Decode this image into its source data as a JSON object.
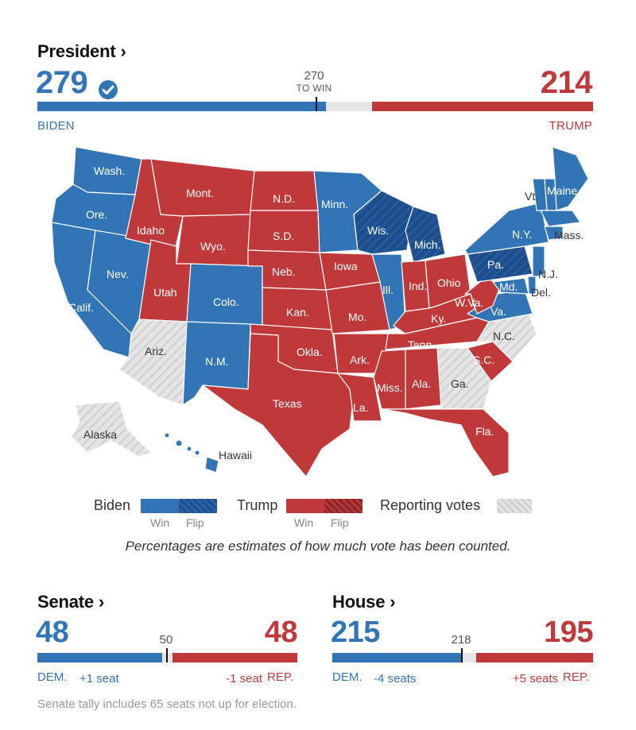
{
  "president": {
    "title": "President",
    "dem_votes": "279",
    "rep_votes": "214",
    "threshold": "270",
    "to_win": "TO WIN",
    "dem_name": "BIDEN",
    "rep_name": "TRUMP",
    "bar": {
      "dem_share": 0.519,
      "rep_share": 0.398,
      "threshold_share": 0.5019
    }
  },
  "map": {
    "states": {
      "wa": "Wash.",
      "or": "Ore.",
      "ca": "Calif.",
      "nv": "Nev.",
      "id": "Idaho",
      "mt": "Mont.",
      "wy": "Wyo.",
      "ut": "Utah",
      "az": "Ariz.",
      "co": "Colo.",
      "nm": "N.M.",
      "nd": "N.D.",
      "sd": "S.D.",
      "ne": "Neb.",
      "ks": "Kan.",
      "ok": "Okla.",
      "tx": "Texas",
      "mn": "Minn.",
      "ia": "Iowa",
      "mo": "Mo.",
      "ar": "Ark.",
      "la": "La.",
      "wi": "Wis.",
      "il": "Ill.",
      "mi": "Mich.",
      "in": "Ind.",
      "oh": "Ohio",
      "ky": "Ky.",
      "tn": "Tenn.",
      "ms": "Miss.",
      "al": "Ala.",
      "ga": "Ga.",
      "fl": "Fla.",
      "sc": "S.C.",
      "nc": "N.C.",
      "va": "Va.",
      "wv": "W.Va.",
      "pa": "Pa.",
      "ny": "N.Y.",
      "vt": "Vt.",
      "me": "Maine",
      "ma": "Mass.",
      "nj": "N.J.",
      "md": "Md.",
      "de": "Del.",
      "ak": "Alaska",
      "hi": "Hawaii"
    }
  },
  "legend": {
    "biden": "Biden",
    "trump": "Trump",
    "reporting": "Reporting votes",
    "win": "Win",
    "flip": "Flip",
    "note": "Percentages are estimates of how much vote has been counted."
  },
  "senate": {
    "title": "Senate",
    "dem": "48",
    "rep": "48",
    "threshold": "50",
    "dem_label": "DEM.",
    "rep_label": "REP.",
    "dem_change": "+1 seat",
    "rep_change": "-1 seat",
    "bar": {
      "dem_share": 0.48,
      "rep_share": 0.48
    }
  },
  "house": {
    "title": "House",
    "dem": "215",
    "rep": "195",
    "threshold": "218",
    "dem_label": "DEM.",
    "rep_label": "REP.",
    "dem_change": "-4 seats",
    "rep_change": "+5 seats",
    "bar": {
      "dem_share": 0.494,
      "rep_share": 0.448
    }
  },
  "footnote": "Senate tally includes 65 seats not up for election.",
  "colors": {
    "dem": "#3275b7",
    "dem_flip": "#1f4e8c",
    "rep": "#c0383a",
    "rep_flip": "#8f2326",
    "reporting": "#dcdcdc"
  }
}
